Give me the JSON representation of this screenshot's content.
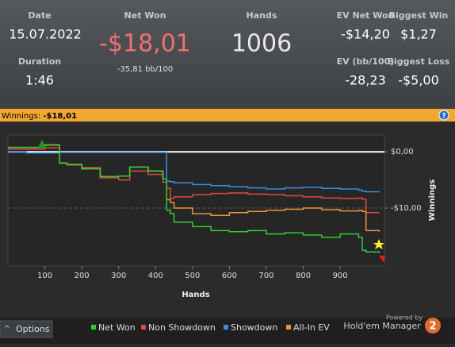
{
  "header": {
    "date": {
      "label": "Date",
      "value": "15.07.2022"
    },
    "duration": {
      "label": "Duration",
      "value": "1:46"
    },
    "net_won": {
      "label": "Net Won",
      "value": "-$18,01",
      "sub": "-35,81 bb/100"
    },
    "hands": {
      "label": "Hands",
      "value": "1006"
    },
    "ev_net_won": {
      "label": "EV Net Won",
      "value": "-$14,20"
    },
    "biggest_win": {
      "label": "Biggest Win",
      "value": "$1,27"
    },
    "ev_bb": {
      "label": "EV (bb/100)",
      "value": "-28,23"
    },
    "biggest_loss": {
      "label": "Biggest Loss",
      "value": "-$5,00"
    }
  },
  "bar": {
    "label": "Winnings:",
    "value": "-$18,01"
  },
  "chart_data": {
    "type": "step-line",
    "xlabel": "Hands",
    "ylabel": "Winnings",
    "x": [
      0,
      50,
      100,
      140,
      160,
      200,
      250,
      300,
      330,
      380,
      420,
      430,
      440,
      450,
      500,
      550,
      600,
      650,
      700,
      750,
      800,
      850,
      900,
      950,
      960,
      970,
      1006
    ],
    "series": [
      {
        "name": "Net Won",
        "color": "#33cc33",
        "values": [
          0.8,
          0.8,
          1.27,
          -2,
          -2.3,
          -3,
          -4.4,
          -4.3,
          -2.7,
          -3.4,
          -4.8,
          -10.4,
          -11,
          -12.5,
          -13.3,
          -14,
          -14.2,
          -14,
          -14.6,
          -14.4,
          -14.8,
          -15.2,
          -14.6,
          -15.2,
          -17.5,
          -17.8,
          -18.01
        ]
      },
      {
        "name": "Non Showdown",
        "color": "#e04848",
        "values": [
          0.5,
          0.5,
          0.7,
          -2,
          -2.2,
          -2.8,
          -4.6,
          -5,
          -3.4,
          -4,
          -5.4,
          -6.5,
          -8.3,
          -8,
          -7.6,
          -7.4,
          -7.3,
          -7.5,
          -7.6,
          -7.8,
          -8,
          -8.2,
          -8.3,
          -8.2,
          -8.4,
          -10.8,
          -10.8
        ]
      },
      {
        "name": "Showdown",
        "color": "#3a8ee0",
        "values": [
          0,
          -0.2,
          -0.2,
          -0.1,
          -0.1,
          -0.1,
          -0.1,
          -0.1,
          -0.1,
          -0.1,
          -0.1,
          -5.2,
          -5.3,
          -5.5,
          -5.8,
          -6,
          -6.2,
          -6.4,
          -6.6,
          -6.4,
          -6.3,
          -6.5,
          -6.6,
          -6.8,
          -7,
          -7.1,
          -7.2
        ]
      },
      {
        "name": "All-In EV",
        "color": "#e8963a",
        "values": [
          0.8,
          0.8,
          1.2,
          -2,
          -2.3,
          -3,
          -4.4,
          -4.3,
          -2.7,
          -3.4,
          -4.8,
          -8.5,
          -9,
          -10,
          -11,
          -11.3,
          -10.8,
          -10.6,
          -10.4,
          -10.2,
          -10,
          -10.3,
          -10.5,
          -10.4,
          -10.6,
          -14,
          -14.2
        ]
      }
    ],
    "xlim": [
      0,
      1020
    ],
    "ylim": [
      -20.3,
      3
    ],
    "xticks": [
      100,
      200,
      300,
      400,
      500,
      600,
      700,
      800,
      900
    ],
    "yticks": [
      {
        "value": 0,
        "label": "$0,00"
      },
      {
        "value": -10,
        "label": "-$10,00"
      }
    ],
    "grid": true
  },
  "footer": {
    "options": "Options",
    "powered": "Powered by",
    "brand": "Hold'em Manager",
    "logo": "2"
  }
}
